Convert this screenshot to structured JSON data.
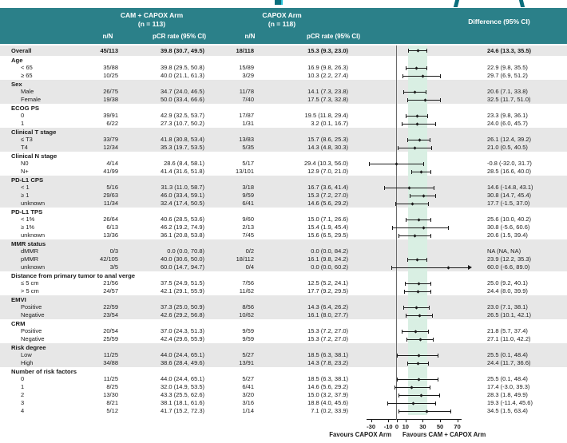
{
  "colors": {
    "header_teal": "#2b8089",
    "stripe_gray": "#e7e7e7",
    "band_mint": "#d9efe3",
    "bar_black": "#1a1a1a"
  },
  "header": {
    "arm1_title": "CAM + CAPOX Arm",
    "arm1_n": "(n = 113)",
    "arm2_title": "CAPOX Arm",
    "arm2_n": "(n = 118)",
    "diff_label": "Difference (95% CI)",
    "nN_label": "n/N",
    "pcr_label": "pCR rate (95% CI)"
  },
  "chart_data": {
    "type": "forest",
    "effect_measure": "Difference (95% CI)",
    "axis": {
      "ticks": [
        -30,
        -10,
        0,
        10,
        30,
        50,
        70
      ],
      "ref_line": 0,
      "shaded_band": [
        13.3,
        35.5
      ]
    },
    "footer_left": "Favours CAPOX Arm",
    "footer_right": "Favours CAM + CAPOX Arm",
    "overall": {
      "label": "Overall",
      "cam_nN": "45/113",
      "cam_pcr": "39.8 (30.7, 49.5)",
      "capox_nN": "18/118",
      "capox_pcr": "15.3 (9.3, 23.0)",
      "diff": "24.6 (13.3, 35.5)",
      "est": 24.6,
      "lo": 13.3,
      "hi": 35.5
    },
    "groups": [
      {
        "label": "Age",
        "rows": [
          {
            "label": "< 65",
            "cam_nN": "35/88",
            "cam_pcr": "39.8 (29.5, 50.8)",
            "capox_nN": "15/89",
            "capox_pcr": "16.9 (9.8, 26.3)",
            "diff": "22.9 (9.8, 35.5)",
            "est": 22.9,
            "lo": 9.8,
            "hi": 35.5
          },
          {
            "label": "≥ 65",
            "cam_nN": "10/25",
            "cam_pcr": "40.0 (21.1, 61.3)",
            "capox_nN": "3/29",
            "capox_pcr": "10.3 (2.2, 27.4)",
            "diff": "29.7 (6.9, 51.2)",
            "est": 29.7,
            "lo": 6.9,
            "hi": 51.2
          }
        ]
      },
      {
        "label": "Sex",
        "rows": [
          {
            "label": "Male",
            "cam_nN": "26/75",
            "cam_pcr": "34.7 (24.0, 46.5)",
            "capox_nN": "11/78",
            "capox_pcr": "14.1 (7.3, 23.8)",
            "diff": "20.6 (7.1, 33.8)",
            "est": 20.6,
            "lo": 7.1,
            "hi": 33.8
          },
          {
            "label": "Female",
            "cam_nN": "19/38",
            "cam_pcr": "50.0 (33.4, 66.6)",
            "capox_nN": "7/40",
            "capox_pcr": "17.5 (7.3, 32.8)",
            "diff": "32.5 (11.7, 51.0)",
            "est": 32.5,
            "lo": 11.7,
            "hi": 51.0
          }
        ]
      },
      {
        "label": "ECOG PS",
        "rows": [
          {
            "label": "0",
            "cam_nN": "39/91",
            "cam_pcr": "42.9 (32.5, 53.7)",
            "capox_nN": "17/87",
            "capox_pcr": "19.5 (11.8, 29.4)",
            "diff": "23.3 (9.8, 36.1)",
            "est": 23.3,
            "lo": 9.8,
            "hi": 36.1
          },
          {
            "label": "1",
            "cam_nN": "6/22",
            "cam_pcr": "27.3 (10.7, 50.2)",
            "capox_nN": "1/31",
            "capox_pcr": "3.2 (0.1, 16.7)",
            "diff": "24.0 (6.0, 45.7)",
            "est": 24.0,
            "lo": 6.0,
            "hi": 45.7
          }
        ]
      },
      {
        "label": "Clinical T stage",
        "rows": [
          {
            "label": "≤ T3",
            "cam_nN": "33/79",
            "cam_pcr": "41.8 (30.8, 53.4)",
            "capox_nN": "13/83",
            "capox_pcr": "15.7 (8.6, 25.3)",
            "diff": "26.1 (12.4, 39.2)",
            "est": 26.1,
            "lo": 12.4,
            "hi": 39.2
          },
          {
            "label": "T4",
            "cam_nN": "12/34",
            "cam_pcr": "35.3 (19.7, 53.5)",
            "capox_nN": "5/35",
            "capox_pcr": "14.3 (4.8, 30.3)",
            "diff": "21.0 (0.5, 40.5)",
            "est": 21.0,
            "lo": 0.5,
            "hi": 40.5
          }
        ]
      },
      {
        "label": "Clinical N stage",
        "rows": [
          {
            "label": "N0",
            "cam_nN": "4/14",
            "cam_pcr": "28.6 (8.4, 58.1)",
            "capox_nN": "5/17",
            "capox_pcr": "29.4 (10.3, 56.0)",
            "diff": "-0.8 (-32.0, 31.7)",
            "est": -0.8,
            "lo": -32.0,
            "hi": 31.7
          },
          {
            "label": "N+",
            "cam_nN": "41/99",
            "cam_pcr": "41.4 (31.6, 51.8)",
            "capox_nN": "13/101",
            "capox_pcr": "12.9 (7.0, 21.0)",
            "diff": "28.5 (16.6, 40.0)",
            "est": 28.5,
            "lo": 16.6,
            "hi": 40.0
          }
        ]
      },
      {
        "label": "PD-L1 CPS",
        "rows": [
          {
            "label": "< 1",
            "cam_nN": "5/16",
            "cam_pcr": "31.3 (11.0, 58.7)",
            "capox_nN": "3/18",
            "capox_pcr": "16.7 (3.6, 41.4)",
            "diff": "14.6 (-14.8, 43.1)",
            "est": 14.6,
            "lo": -14.8,
            "hi": 43.1
          },
          {
            "label": "≥ 1",
            "cam_nN": "29/63",
            "cam_pcr": "46.0 (33.4, 59.1)",
            "capox_nN": "9/59",
            "capox_pcr": "15.3 (7.2, 27.0)",
            "diff": "30.8 (14.7, 45.4)",
            "est": 30.8,
            "lo": 14.7,
            "hi": 45.4
          },
          {
            "label": "unknown",
            "cam_nN": "11/34",
            "cam_pcr": "32.4 (17.4, 50.5)",
            "capox_nN": "6/41",
            "capox_pcr": "14.6 (5.6, 29.2)",
            "diff": "17.7 (-1.5, 37.0)",
            "est": 17.7,
            "lo": -1.5,
            "hi": 37.0
          }
        ]
      },
      {
        "label": "PD-L1 TPS",
        "rows": [
          {
            "label": "< 1%",
            "cam_nN": "26/64",
            "cam_pcr": "40.6 (28.5, 53.6)",
            "capox_nN": "9/60",
            "capox_pcr": "15.0 (7.1, 26.6)",
            "diff": "25.6 (10.0, 40.2)",
            "est": 25.6,
            "lo": 10.0,
            "hi": 40.2
          },
          {
            "label": "≥ 1%",
            "cam_nN": "6/13",
            "cam_pcr": "46.2 (19.2, 74.9)",
            "capox_nN": "2/13",
            "capox_pcr": "15.4 (1.9, 45.4)",
            "diff": "30.8 (-5.6, 60.6)",
            "est": 30.8,
            "lo": -5.6,
            "hi": 60.6
          },
          {
            "label": "unknown",
            "cam_nN": "13/36",
            "cam_pcr": "36.1 (20.8, 53.8)",
            "capox_nN": "7/45",
            "capox_pcr": "15.6 (6.5, 29.5)",
            "diff": "20.6 (1.5, 39.4)",
            "est": 20.6,
            "lo": 1.5,
            "hi": 39.4
          }
        ]
      },
      {
        "label": "MMR status",
        "rows": [
          {
            "label": "dMMR",
            "cam_nN": "0/3",
            "cam_pcr": "0.0 (0.0, 70.8)",
            "capox_nN": "0/2",
            "capox_pcr": "0.0 (0.0, 84.2)",
            "diff": "NA (NA, NA)",
            "est": null,
            "lo": null,
            "hi": null
          },
          {
            "label": "pMMR",
            "cam_nN": "42/105",
            "cam_pcr": "40.0 (30.6, 50.0)",
            "capox_nN": "18/112",
            "capox_pcr": "16.1 (9.8, 24.2)",
            "diff": "23.9 (12.2, 35.3)",
            "est": 23.9,
            "lo": 12.2,
            "hi": 35.3
          },
          {
            "label": "unknown",
            "cam_nN": "3/5",
            "cam_pcr": "60.0 (14.7, 94.7)",
            "capox_nN": "0/4",
            "capox_pcr": "0.0 (0.0, 60.2)",
            "diff": "60.0 (-6.6, 89.0)",
            "est": 60.0,
            "lo": -6.6,
            "hi": 89.0
          }
        ]
      },
      {
        "label": "Distance from primary tumor to anal verge",
        "rows": [
          {
            "label": "≤ 5 cm",
            "cam_nN": "21/56",
            "cam_pcr": "37.5 (24.9, 51.5)",
            "capox_nN": "7/56",
            "capox_pcr": "12.5 (5.2, 24.1)",
            "diff": "25.0 (9.2, 40.1)",
            "est": 25.0,
            "lo": 9.2,
            "hi": 40.1
          },
          {
            "label": "> 5 cm",
            "cam_nN": "24/57",
            "cam_pcr": "42.1 (29.1, 55.9)",
            "capox_nN": "11/62",
            "capox_pcr": "17.7 (9.2, 29.5)",
            "diff": "24.4 (8.0, 39.9)",
            "est": 24.4,
            "lo": 8.0,
            "hi": 39.9
          }
        ]
      },
      {
        "label": "EMVI",
        "rows": [
          {
            "label": "Positive",
            "cam_nN": "22/59",
            "cam_pcr": "37.3 (25.0, 50.9)",
            "capox_nN": "8/56",
            "capox_pcr": "14.3 (6.4, 26.2)",
            "diff": "23.0 (7.1, 38.1)",
            "est": 23.0,
            "lo": 7.1,
            "hi": 38.1
          },
          {
            "label": "Negative",
            "cam_nN": "23/54",
            "cam_pcr": "42.6 (29.2, 56.8)",
            "capox_nN": "10/62",
            "capox_pcr": "16.1 (8.0, 27.7)",
            "diff": "26.5 (10.1, 42.1)",
            "est": 26.5,
            "lo": 10.1,
            "hi": 42.1
          }
        ]
      },
      {
        "label": "CRM",
        "rows": [
          {
            "label": "Positive",
            "cam_nN": "20/54",
            "cam_pcr": "37.0 (24.3, 51.3)",
            "capox_nN": "9/59",
            "capox_pcr": "15.3 (7.2, 27.0)",
            "diff": "21.8 (5.7, 37.4)",
            "est": 21.8,
            "lo": 5.7,
            "hi": 37.4
          },
          {
            "label": "Negative",
            "cam_nN": "25/59",
            "cam_pcr": "42.4 (29.6, 55.9)",
            "capox_nN": "9/59",
            "capox_pcr": "15.3 (7.2, 27.0)",
            "diff": "27.1 (11.0, 42.2)",
            "est": 27.1,
            "lo": 11.0,
            "hi": 42.2
          }
        ]
      },
      {
        "label": "Risk degree",
        "rows": [
          {
            "label": "Low",
            "cam_nN": "11/25",
            "cam_pcr": "44.0 (24.4, 65.1)",
            "capox_nN": "5/27",
            "capox_pcr": "18.5 (6.3, 38.1)",
            "diff": "25.5 (0.1, 48.4)",
            "est": 25.5,
            "lo": 0.1,
            "hi": 48.4
          },
          {
            "label": "High",
            "cam_nN": "34/88",
            "cam_pcr": "38.6 (28.4, 49.6)",
            "capox_nN": "13/91",
            "capox_pcr": "14.3 (7.8, 23.2)",
            "diff": "24.4 (11.7, 36.6)",
            "est": 24.4,
            "lo": 11.7,
            "hi": 36.6
          }
        ]
      },
      {
        "label": "Number of risk factors",
        "rows": [
          {
            "label": "0",
            "cam_nN": "11/25",
            "cam_pcr": "44.0 (24.4, 65.1)",
            "capox_nN": "5/27",
            "capox_pcr": "18.5 (6.3, 38.1)",
            "diff": "25.5 (0.1, 48.4)",
            "est": 25.5,
            "lo": 0.1,
            "hi": 48.4
          },
          {
            "label": "1",
            "cam_nN": "8/25",
            "cam_pcr": "32.0 (14.9, 53.5)",
            "capox_nN": "6/41",
            "capox_pcr": "14.6 (5.6, 29.2)",
            "diff": "17.4 (-3.0, 39.3)",
            "est": 17.4,
            "lo": -3.0,
            "hi": 39.3
          },
          {
            "label": "2",
            "cam_nN": "13/30",
            "cam_pcr": "43.3 (25.5, 62.6)",
            "capox_nN": "3/20",
            "capox_pcr": "15.0 (3.2, 37.9)",
            "diff": "28.3 (1.8, 49.9)",
            "est": 28.3,
            "lo": 1.8,
            "hi": 49.9
          },
          {
            "label": "3",
            "cam_nN": "8/21",
            "cam_pcr": "38.1 (18.1, 61.6)",
            "capox_nN": "3/16",
            "capox_pcr": "18.8 (4.0, 45.6)",
            "diff": "19.3 (-11.4, 45.6)",
            "est": 19.3,
            "lo": -11.4,
            "hi": 45.6
          },
          {
            "label": "4",
            "cam_nN": "5/12",
            "cam_pcr": "41.7 (15.2, 72.3)",
            "capox_nN": "1/14",
            "capox_pcr": "7.1 (0.2, 33.9)",
            "diff": "34.5 (1.5, 63.4)",
            "est": 34.5,
            "lo": 1.5,
            "hi": 63.4
          }
        ]
      }
    ]
  }
}
